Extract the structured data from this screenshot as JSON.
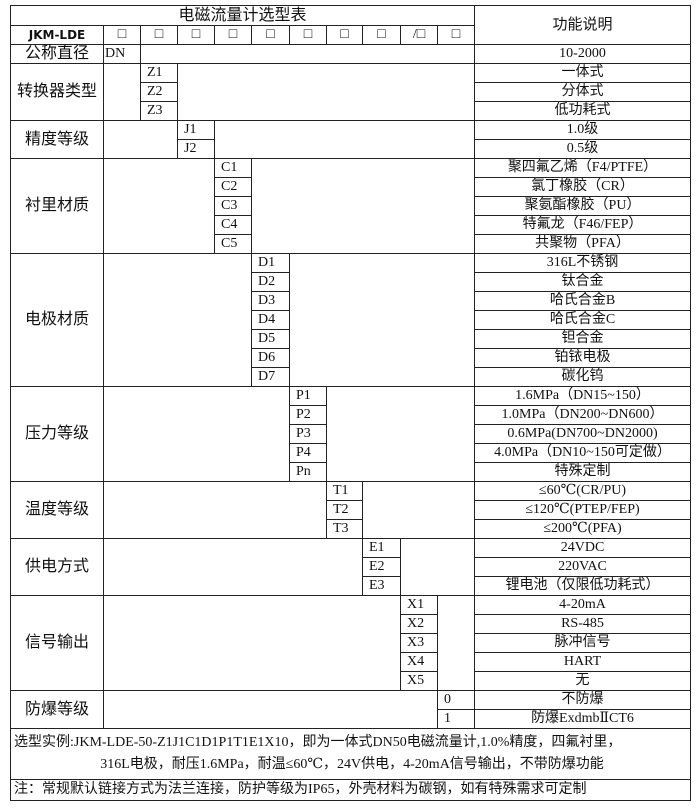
{
  "header": {
    "title": "电磁流量计选型表",
    "function_header": "功能说明",
    "model_prefix": "JKM-LDE",
    "code_boxes": [
      "□",
      "□",
      "□",
      "□",
      "□",
      "□",
      "□",
      "□",
      "/□",
      "□"
    ]
  },
  "groups": [
    {
      "label": "公称直径",
      "col": 0,
      "items": [
        {
          "code": "DN",
          "desc": "10-2000"
        }
      ]
    },
    {
      "label": "转换器类型",
      "col": 1,
      "items": [
        {
          "code": "Z1",
          "desc": "一体式"
        },
        {
          "code": "Z2",
          "desc": "分体式"
        },
        {
          "code": "Z3",
          "desc": "低功耗式"
        }
      ]
    },
    {
      "label": "精度等级",
      "col": 2,
      "items": [
        {
          "code": "J1",
          "desc": "1.0级"
        },
        {
          "code": "J2",
          "desc": "0.5级"
        }
      ]
    },
    {
      "label": "衬里材质",
      "col": 3,
      "items": [
        {
          "code": "C1",
          "desc": "聚四氟乙烯（F4/PTFE）"
        },
        {
          "code": "C2",
          "desc": "氯丁橡胶（CR）"
        },
        {
          "code": "C3",
          "desc": "聚氨酯橡胶（PU）"
        },
        {
          "code": "C4",
          "desc": "特氟龙（F46/FEP）"
        },
        {
          "code": "C5",
          "desc": "共聚物（PFA）"
        }
      ]
    },
    {
      "label": "电极材质",
      "col": 4,
      "items": [
        {
          "code": "D1",
          "desc": "316L不锈钢"
        },
        {
          "code": "D2",
          "desc": "钛合金"
        },
        {
          "code": "D3",
          "desc": "哈氏合金B"
        },
        {
          "code": "D4",
          "desc": "哈氏合金C"
        },
        {
          "code": "D5",
          "desc": "钽合金"
        },
        {
          "code": "D6",
          "desc": "铂铱电极"
        },
        {
          "code": "D7",
          "desc": "碳化钨"
        }
      ]
    },
    {
      "label": "压力等级",
      "col": 5,
      "items": [
        {
          "code": "P1",
          "desc": "1.6MPa（DN15~150）"
        },
        {
          "code": "P2",
          "desc": "1.0MPa（DN200~DN600）"
        },
        {
          "code": "P3",
          "desc": "0.6MPa(DN700~DN2000)"
        },
        {
          "code": "P4",
          "desc": "4.0MPa（DN10~150可定做）"
        },
        {
          "code": "Pn",
          "desc": "特殊定制"
        }
      ]
    },
    {
      "label": "温度等级",
      "col": 6,
      "items": [
        {
          "code": "T1",
          "desc": "≤60℃(CR/PU)"
        },
        {
          "code": "T2",
          "desc": "≤120℃(PTEP/FEP)"
        },
        {
          "code": "T3",
          "desc": "≤200℃(PFA)"
        }
      ]
    },
    {
      "label": "供电方式",
      "col": 7,
      "items": [
        {
          "code": "E1",
          "desc": "24VDC"
        },
        {
          "code": "E2",
          "desc": "220VAC"
        },
        {
          "code": "E3",
          "desc": "锂电池（仅限低功耗式）"
        }
      ]
    },
    {
      "label": "信号输出",
      "col": 8,
      "items": [
        {
          "code": "X1",
          "desc": "4-20mA"
        },
        {
          "code": "X2",
          "desc": "RS-485"
        },
        {
          "code": "X3",
          "desc": "脉冲信号"
        },
        {
          "code": "X4",
          "desc": "HART"
        },
        {
          "code": "X5",
          "desc": "无"
        }
      ]
    },
    {
      "label": "防爆等级",
      "col": 9,
      "items": [
        {
          "code": "0",
          "desc": "不防爆"
        },
        {
          "code": "1",
          "desc": "防爆ExdmbⅡCT6"
        }
      ]
    }
  ],
  "footer": {
    "example_line1": "选型实例:JKM-LDE-50-Z1J1C1D1P1T1E1X10，即为一体式DN50电磁流量计,1.0%精度，四氟衬里，",
    "example_line2": "316L电极，耐压1.6MPa，耐温≤60℃，24V供电，4-20mA信号输出，不带防爆功能",
    "note": "注：常规默认链接方式为法兰连接，防护等级为IP65，外壳材料为碳钢，如有特殊需求可定制"
  }
}
